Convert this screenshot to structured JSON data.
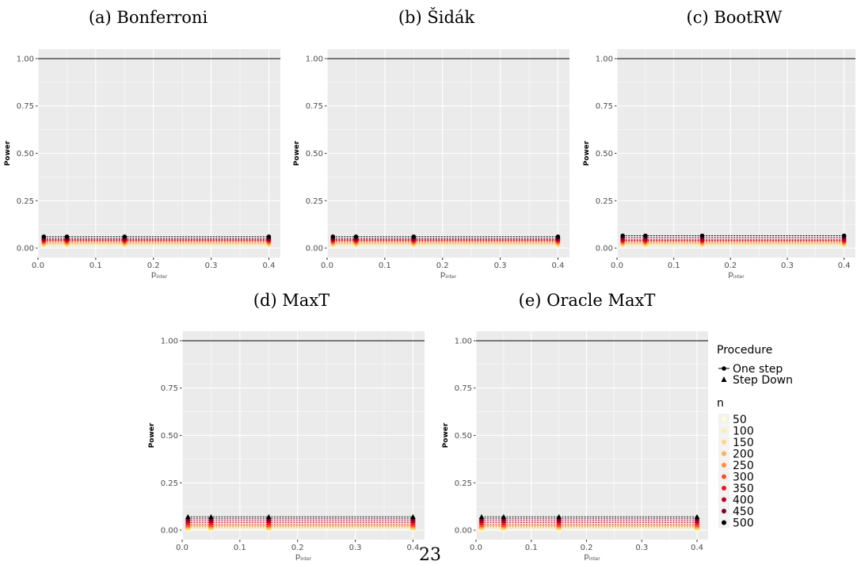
{
  "captions": [
    "(a) Bonferroni",
    "(b) Šidák",
    "(c) BootRW",
    "(d) MaxT",
    "(e) Oracle MaxT"
  ],
  "page_number": "23",
  "colors": {
    "panel_bg": "#ebebeb",
    "grid": "#ffffff",
    "ref_line": "#000000",
    "n_palette": [
      "#ffffcc",
      "#ffeda0",
      "#fed976",
      "#feb24c",
      "#fd8d3c",
      "#fc4e2a",
      "#e31a1c",
      "#bd0026",
      "#800026",
      "#000000"
    ]
  },
  "chart_data": [
    {
      "type": "line",
      "title": "(a) Bonferroni",
      "xlabel": "p_inter",
      "ylabel": "Power",
      "x": [
        0.01,
        0.05,
        0.15,
        0.4
      ],
      "xlim": [
        0.0,
        0.42
      ],
      "ylim": [
        0.0,
        1.0
      ],
      "xticks": [
        "0.0",
        "0.1",
        "0.2",
        "0.3",
        "0.4"
      ],
      "yticks": [
        "0.00",
        "0.25",
        "0.50",
        "0.75",
        "1.00"
      ],
      "reference_line": 1.0,
      "grid": true,
      "legend": "none",
      "series": [
        {
          "n": 50,
          "procedure": "One step",
          "values": [
            0.01,
            0.01,
            0.01,
            0.01
          ]
        },
        {
          "n": 100,
          "procedure": "One step",
          "values": [
            0.015,
            0.015,
            0.015,
            0.015
          ]
        },
        {
          "n": 150,
          "procedure": "One step",
          "values": [
            0.02,
            0.02,
            0.02,
            0.02
          ]
        },
        {
          "n": 200,
          "procedure": "One step",
          "values": [
            0.025,
            0.025,
            0.025,
            0.025
          ]
        },
        {
          "n": 250,
          "procedure": "One step",
          "values": [
            0.03,
            0.03,
            0.03,
            0.03
          ]
        },
        {
          "n": 300,
          "procedure": "One step",
          "values": [
            0.035,
            0.035,
            0.035,
            0.035
          ]
        },
        {
          "n": 350,
          "procedure": "One step",
          "values": [
            0.04,
            0.04,
            0.04,
            0.04
          ]
        },
        {
          "n": 400,
          "procedure": "One step",
          "values": [
            0.045,
            0.045,
            0.045,
            0.045
          ]
        },
        {
          "n": 450,
          "procedure": "One step",
          "values": [
            0.05,
            0.05,
            0.05,
            0.05
          ]
        },
        {
          "n": 500,
          "procedure": "One step",
          "values": [
            0.06,
            0.06,
            0.06,
            0.06
          ]
        }
      ]
    },
    {
      "type": "line",
      "title": "(b) Šidák",
      "xlabel": "p_inter",
      "ylabel": "Power",
      "x": [
        0.01,
        0.05,
        0.15,
        0.4
      ],
      "xlim": [
        0.0,
        0.42
      ],
      "ylim": [
        0.0,
        1.0
      ],
      "xticks": [
        "0.0",
        "0.1",
        "0.2",
        "0.3",
        "0.4"
      ],
      "yticks": [
        "0.00",
        "0.25",
        "0.50",
        "0.75",
        "1.00"
      ],
      "reference_line": 1.0,
      "grid": true,
      "legend": "none",
      "series": [
        {
          "n": 50,
          "procedure": "One step",
          "values": [
            0.01,
            0.01,
            0.01,
            0.01
          ]
        },
        {
          "n": 100,
          "procedure": "One step",
          "values": [
            0.015,
            0.015,
            0.015,
            0.015
          ]
        },
        {
          "n": 150,
          "procedure": "One step",
          "values": [
            0.02,
            0.02,
            0.02,
            0.02
          ]
        },
        {
          "n": 200,
          "procedure": "One step",
          "values": [
            0.025,
            0.025,
            0.025,
            0.025
          ]
        },
        {
          "n": 250,
          "procedure": "One step",
          "values": [
            0.03,
            0.03,
            0.03,
            0.03
          ]
        },
        {
          "n": 300,
          "procedure": "One step",
          "values": [
            0.035,
            0.035,
            0.035,
            0.035
          ]
        },
        {
          "n": 350,
          "procedure": "One step",
          "values": [
            0.04,
            0.04,
            0.04,
            0.04
          ]
        },
        {
          "n": 400,
          "procedure": "One step",
          "values": [
            0.045,
            0.045,
            0.045,
            0.045
          ]
        },
        {
          "n": 450,
          "procedure": "One step",
          "values": [
            0.05,
            0.05,
            0.05,
            0.05
          ]
        },
        {
          "n": 500,
          "procedure": "One step",
          "values": [
            0.06,
            0.06,
            0.06,
            0.06
          ]
        }
      ]
    },
    {
      "type": "line",
      "title": "(c) BootRW",
      "xlabel": "p_inter",
      "ylabel": "Power",
      "x": [
        0.01,
        0.05,
        0.15,
        0.4
      ],
      "xlim": [
        0.0,
        0.42
      ],
      "ylim": [
        0.0,
        1.0
      ],
      "xticks": [
        "0.0",
        "0.1",
        "0.2",
        "0.3",
        "0.4"
      ],
      "yticks": [
        "0.00",
        "0.25",
        "0.50",
        "0.75",
        "1.00"
      ],
      "reference_line": 1.0,
      "grid": true,
      "legend": "none",
      "series": [
        {
          "n": 50,
          "procedure": "One step",
          "values": [
            0.01,
            0.01,
            0.01,
            0.01
          ]
        },
        {
          "n": 100,
          "procedure": "One step",
          "values": [
            0.015,
            0.015,
            0.015,
            0.015
          ]
        },
        {
          "n": 150,
          "procedure": "One step",
          "values": [
            0.02,
            0.02,
            0.02,
            0.02
          ]
        },
        {
          "n": 200,
          "procedure": "One step",
          "values": [
            0.025,
            0.025,
            0.025,
            0.025
          ]
        },
        {
          "n": 250,
          "procedure": "One step",
          "values": [
            0.03,
            0.03,
            0.03,
            0.03
          ]
        },
        {
          "n": 300,
          "procedure": "One step",
          "values": [
            0.035,
            0.035,
            0.035,
            0.035
          ]
        },
        {
          "n": 350,
          "procedure": "One step",
          "values": [
            0.04,
            0.04,
            0.04,
            0.04
          ]
        },
        {
          "n": 400,
          "procedure": "One step",
          "values": [
            0.045,
            0.045,
            0.045,
            0.045
          ]
        },
        {
          "n": 450,
          "procedure": "One step",
          "values": [
            0.055,
            0.055,
            0.055,
            0.055
          ]
        },
        {
          "n": 500,
          "procedure": "One step",
          "values": [
            0.065,
            0.065,
            0.065,
            0.065
          ]
        }
      ]
    },
    {
      "type": "line",
      "title": "(d) MaxT",
      "xlabel": "p_inter",
      "ylabel": "Power",
      "x": [
        0.01,
        0.05,
        0.15,
        0.4
      ],
      "xlim": [
        0.0,
        0.42
      ],
      "ylim": [
        0.0,
        1.0
      ],
      "xticks": [
        "0.0",
        "0.1",
        "0.2",
        "0.3",
        "0.4"
      ],
      "yticks": [
        "0.00",
        "0.25",
        "0.50",
        "0.75",
        "1.00"
      ],
      "reference_line": 1.0,
      "grid": true,
      "legend": "none",
      "series": [
        {
          "n": 50,
          "procedure": "Step Down",
          "values": [
            0.005,
            0.005,
            0.005,
            0.005
          ]
        },
        {
          "n": 100,
          "procedure": "Step Down",
          "values": [
            0.01,
            0.01,
            0.01,
            0.01
          ]
        },
        {
          "n": 150,
          "procedure": "Step Down",
          "values": [
            0.015,
            0.015,
            0.015,
            0.015
          ]
        },
        {
          "n": 200,
          "procedure": "Step Down",
          "values": [
            0.02,
            0.02,
            0.02,
            0.02
          ]
        },
        {
          "n": 250,
          "procedure": "Step Down",
          "values": [
            0.025,
            0.025,
            0.025,
            0.025
          ]
        },
        {
          "n": 300,
          "procedure": "Step Down",
          "values": [
            0.03,
            0.03,
            0.03,
            0.03
          ]
        },
        {
          "n": 350,
          "procedure": "Step Down",
          "values": [
            0.04,
            0.04,
            0.04,
            0.04
          ]
        },
        {
          "n": 400,
          "procedure": "Step Down",
          "values": [
            0.05,
            0.05,
            0.05,
            0.05
          ]
        },
        {
          "n": 450,
          "procedure": "Step Down",
          "values": [
            0.06,
            0.06,
            0.06,
            0.06
          ]
        },
        {
          "n": 500,
          "procedure": "Step Down",
          "values": [
            0.07,
            0.07,
            0.07,
            0.07
          ]
        }
      ]
    },
    {
      "type": "line",
      "title": "(e) Oracle MaxT",
      "xlabel": "p_inter",
      "ylabel": "Power",
      "x": [
        0.01,
        0.05,
        0.15,
        0.4
      ],
      "xlim": [
        0.0,
        0.42
      ],
      "ylim": [
        0.0,
        1.0
      ],
      "xticks": [
        "0.0",
        "0.1",
        "0.2",
        "0.3",
        "0.4"
      ],
      "yticks": [
        "0.00",
        "0.25",
        "0.50",
        "0.75",
        "1.00"
      ],
      "reference_line": 1.0,
      "grid": true,
      "legend": "right",
      "series": [
        {
          "n": 50,
          "procedure": "Step Down",
          "values": [
            0.005,
            0.005,
            0.005,
            0.005
          ]
        },
        {
          "n": 100,
          "procedure": "Step Down",
          "values": [
            0.01,
            0.01,
            0.01,
            0.01
          ]
        },
        {
          "n": 150,
          "procedure": "Step Down",
          "values": [
            0.015,
            0.015,
            0.015,
            0.015
          ]
        },
        {
          "n": 200,
          "procedure": "Step Down",
          "values": [
            0.02,
            0.02,
            0.02,
            0.02
          ]
        },
        {
          "n": 250,
          "procedure": "Step Down",
          "values": [
            0.025,
            0.025,
            0.025,
            0.025
          ]
        },
        {
          "n": 300,
          "procedure": "Step Down",
          "values": [
            0.03,
            0.03,
            0.03,
            0.03
          ]
        },
        {
          "n": 350,
          "procedure": "Step Down",
          "values": [
            0.04,
            0.04,
            0.04,
            0.04
          ]
        },
        {
          "n": 400,
          "procedure": "Step Down",
          "values": [
            0.05,
            0.05,
            0.05,
            0.05
          ]
        },
        {
          "n": 450,
          "procedure": "Step Down",
          "values": [
            0.06,
            0.06,
            0.06,
            0.06
          ]
        },
        {
          "n": 500,
          "procedure": "Step Down",
          "values": [
            0.07,
            0.07,
            0.07,
            0.07
          ]
        }
      ]
    }
  ],
  "legend": {
    "procedure_title": "Procedure",
    "procedure_items": [
      "One step",
      "Step Down"
    ],
    "n_title": "n",
    "n_items": [
      "50",
      "100",
      "150",
      "200",
      "250",
      "300",
      "350",
      "400",
      "450",
      "500"
    ]
  }
}
